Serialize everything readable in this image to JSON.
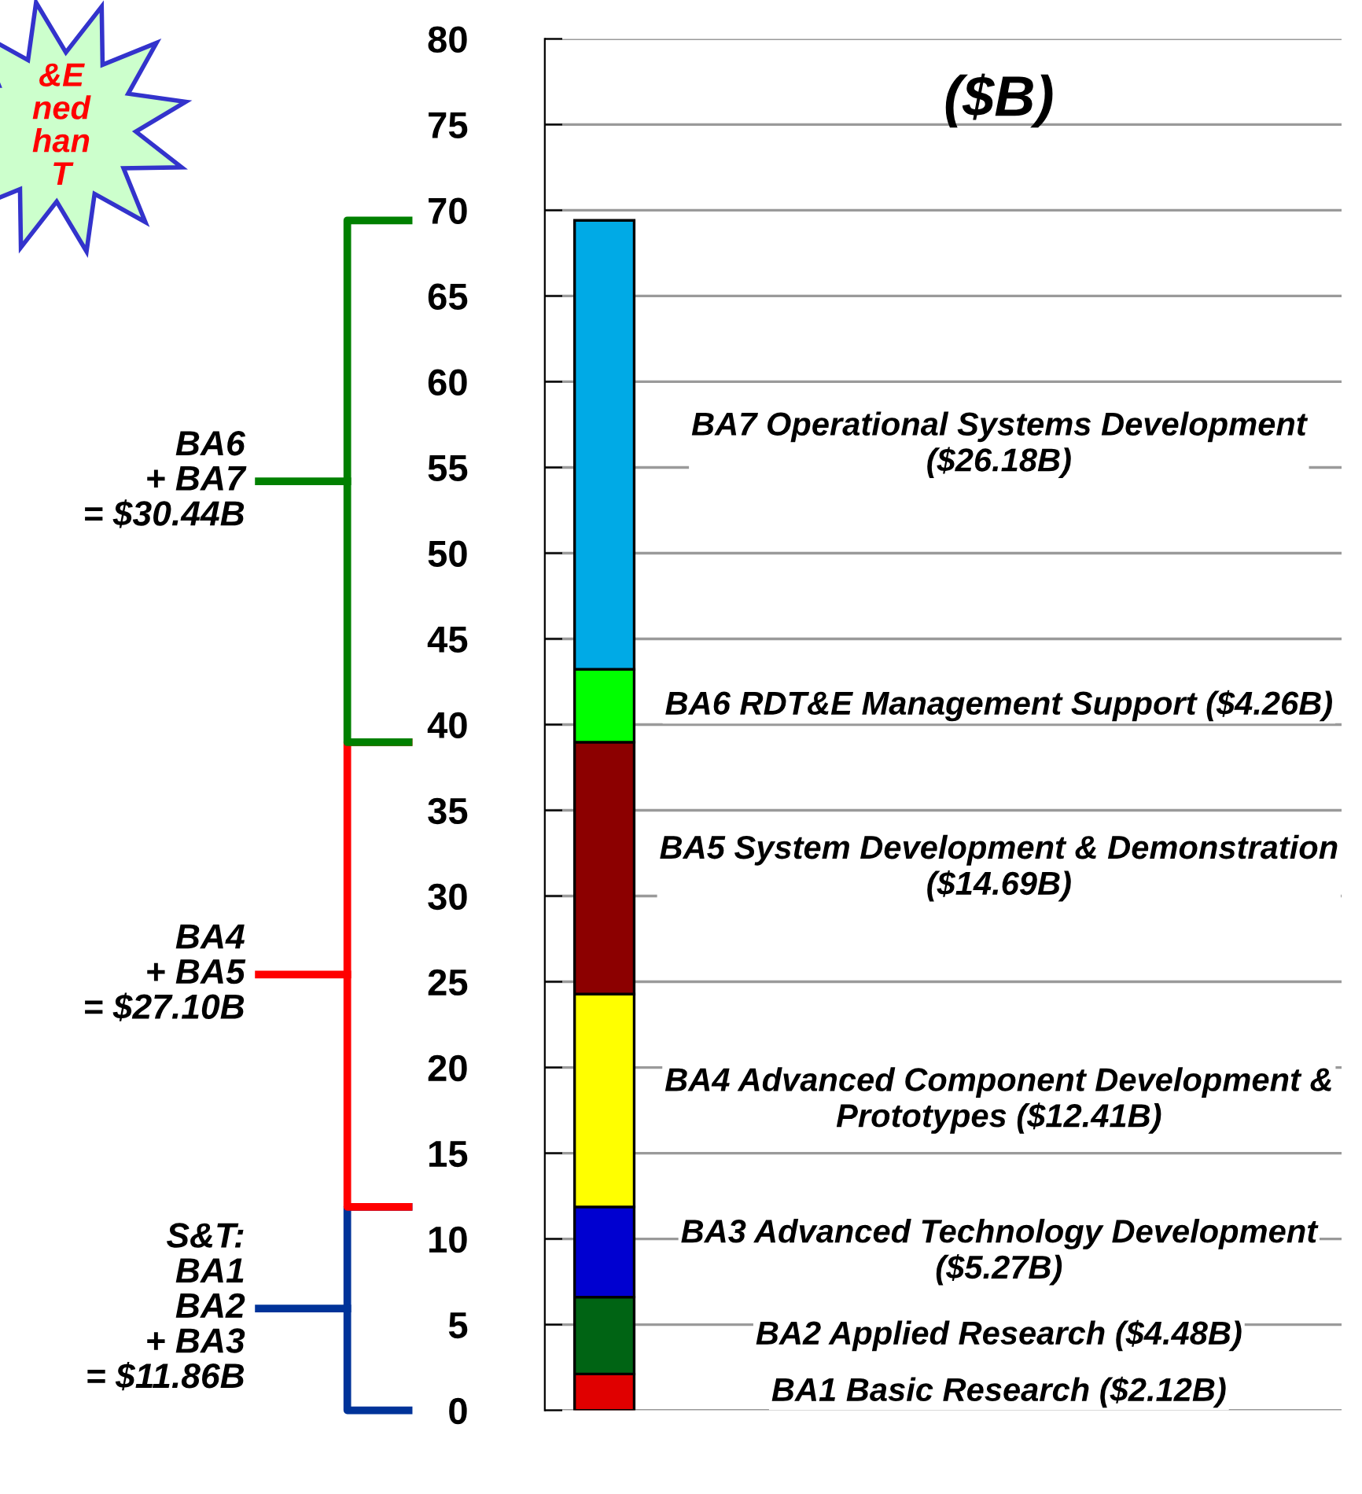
{
  "chart_data": {
    "type": "bar",
    "stacked": true,
    "title": "($B)",
    "categories": [
      null
    ],
    "series": [
      {
        "name": "BA1 Basic Research ($2.12B)",
        "color": "#e00000",
        "values": [
          2.12
        ]
      },
      {
        "name": "BA2 Applied Research ($4.48B)",
        "color": "#006414",
        "values": [
          4.48
        ]
      },
      {
        "name": "BA3 Advanced Technology Development ($5.27B)",
        "color": "#0000d0",
        "values": [
          5.27
        ]
      },
      {
        "name": "BA4 Advanced Component Development & Prototypes ($12.41B)",
        "color": "#ffff00",
        "values": [
          12.41
        ]
      },
      {
        "name": "BA5 System Development & Demonstration ($14.69B)",
        "color": "#8c0000",
        "values": [
          14.69
        ]
      },
      {
        "name": "BA6 RDT&E Management Support ($4.26B)",
        "color": "#00ff00",
        "values": [
          4.26
        ]
      },
      {
        "name": "BA7 Operational Systems Development ($26.18B)",
        "color": "#00aae6",
        "values": [
          26.18
        ]
      }
    ],
    "ylim": [
      0,
      80
    ],
    "yticks": [
      0,
      5,
      10,
      15,
      20,
      25,
      30,
      35,
      40,
      45,
      50,
      55,
      60,
      65,
      70,
      75,
      80
    ],
    "grid": "y",
    "annotations": [
      "&E\nned\nhan\nT",
      "S&T:\nBA1\nBA2\n+ BA3\n= $11.86B",
      "BA4\n+ BA5\n= $27.10B",
      "BA6\n+ BA7\n= $30.44B"
    ]
  }
}
